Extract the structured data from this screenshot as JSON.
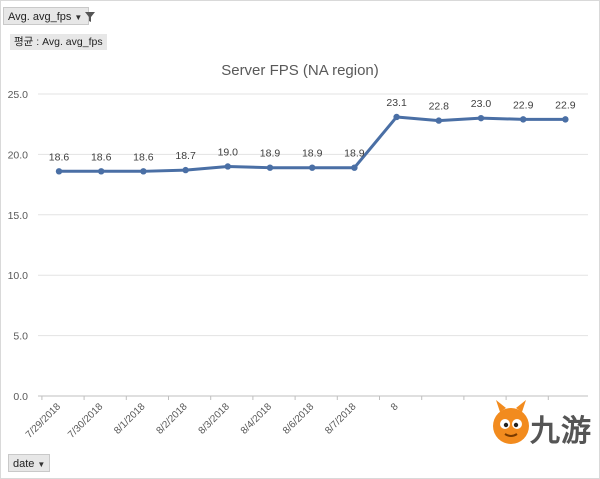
{
  "controls": {
    "value_field": "Avg. avg_fps",
    "value_label": "평균 : Avg. avg_fps",
    "axis_field": "date"
  },
  "watermark": {
    "text": "九游"
  },
  "colors": {
    "series": "#4a6fa5",
    "grid": "#e3e3e3",
    "axis_text": "#595959"
  },
  "chart_data": {
    "type": "line",
    "title": "Server FPS (NA region)",
    "xlabel": "",
    "ylabel": "",
    "categories": [
      "7/29/2018",
      "7/30/2018",
      "8/1/2018",
      "8/2/2018",
      "8/3/2018",
      "8/4/2018",
      "8/6/2018",
      "8/7/2018",
      "8",
      "",
      "",
      "",
      ""
    ],
    "values": [
      18.6,
      18.6,
      18.6,
      18.7,
      19.0,
      18.9,
      18.9,
      18.9,
      23.1,
      22.8,
      23.0,
      22.9,
      22.9
    ],
    "data_labels": [
      "18.6",
      "18.6",
      "18.6",
      "18.7",
      "19.0",
      "18.9",
      "18.9",
      "18.9",
      "23.1",
      "22.8",
      "23.0",
      "22.9",
      "22.9"
    ],
    "yticks": [
      "0.0",
      "5.0",
      "10.0",
      "15.0",
      "20.0",
      "25.0"
    ],
    "ylim": [
      0,
      25
    ],
    "grid": true,
    "legend": "none"
  }
}
